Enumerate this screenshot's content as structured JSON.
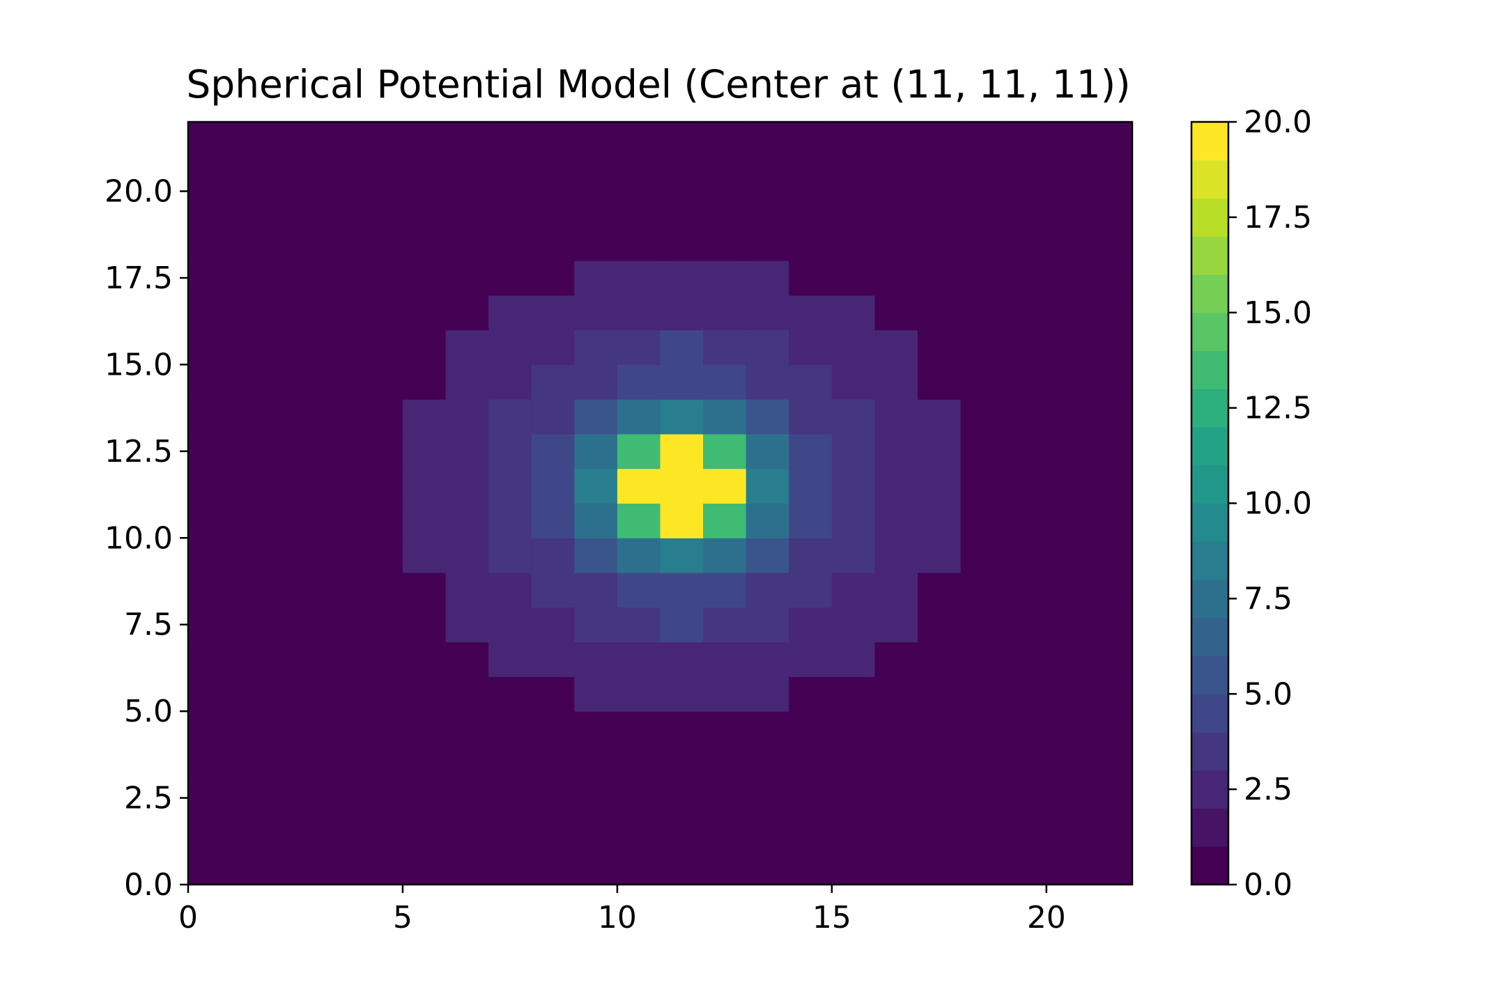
{
  "chart_data": {
    "type": "heatmap",
    "title": "Spherical Potential Model (Center at (11, 11, 11))",
    "xlabel": "",
    "ylabel": "",
    "xlim": [
      0,
      22
    ],
    "ylim": [
      0,
      22
    ],
    "x_ticks": [
      0,
      5,
      10,
      15,
      20
    ],
    "x_tick_labels": [
      "0",
      "5",
      "10",
      "15",
      "20"
    ],
    "y_ticks": [
      0,
      2.5,
      5,
      7.5,
      10,
      12.5,
      15,
      17.5,
      20
    ],
    "y_tick_labels": [
      "0.0",
      "2.5",
      "5.0",
      "7.5",
      "10.0",
      "12.5",
      "15.0",
      "17.5",
      "20.0"
    ],
    "grid": false,
    "colormap": "viridis",
    "colorbar": {
      "range": [
        0,
        20
      ],
      "levels": 20,
      "ticks": [
        0,
        2.5,
        5,
        7.5,
        10,
        12.5,
        15,
        17.5,
        20
      ],
      "tick_labels": [
        "0.0",
        "2.5",
        "5.0",
        "7.5",
        "10.0",
        "12.5",
        "15.0",
        "17.5",
        "20.0"
      ]
    },
    "value_range": [
      0,
      20
    ],
    "cell_columns": 22,
    "cell_rows": 22,
    "notes_on_values": "values indexed values[row][col], row 0 at y 0..1 (bottom), col 0 at x 0..1 (left); cell center value reads off colorbar",
    "values": [
      [
        0,
        0,
        0,
        0,
        0,
        0,
        0,
        0,
        0,
        0,
        0,
        0,
        0,
        0,
        0,
        0,
        0,
        0,
        0,
        0,
        0,
        0
      ],
      [
        0,
        0,
        0,
        0,
        0,
        0,
        0,
        0,
        0,
        0,
        0,
        0,
        0,
        0,
        0,
        0,
        0,
        0,
        0,
        0,
        0,
        0
      ],
      [
        0,
        0,
        0,
        0,
        0,
        0,
        0,
        0,
        0,
        0,
        0,
        0,
        0,
        0,
        0,
        0,
        0,
        0,
        0,
        0,
        0,
        0
      ],
      [
        0,
        0,
        0,
        0,
        0,
        0,
        0,
        0,
        0,
        0,
        0,
        0,
        0,
        0,
        0,
        0,
        0,
        0,
        0,
        0,
        0,
        0
      ],
      [
        0,
        0,
        0,
        0,
        0,
        0,
        0,
        0,
        0,
        0,
        0,
        0,
        0,
        0,
        0,
        0,
        0,
        0,
        0,
        0,
        0,
        0
      ],
      [
        0,
        0,
        0,
        0,
        0,
        0,
        0,
        0,
        0,
        2,
        2,
        2,
        2,
        2,
        0,
        0,
        0,
        0,
        0,
        0,
        0,
        0
      ],
      [
        0,
        0,
        0,
        0,
        0,
        0,
        0,
        2,
        2,
        2,
        2,
        2,
        2,
        2,
        2,
        2,
        0,
        0,
        0,
        0,
        0,
        0
      ],
      [
        0,
        0,
        0,
        0,
        0,
        0,
        2,
        2,
        2,
        3,
        3,
        4,
        3,
        3,
        2,
        2,
        2,
        0,
        0,
        0,
        0,
        0
      ],
      [
        0,
        0,
        0,
        0,
        0,
        0,
        2,
        2,
        3,
        3,
        4,
        4,
        4,
        3,
        3,
        2,
        2,
        0,
        0,
        0,
        0,
        0
      ],
      [
        0,
        0,
        0,
        0,
        0,
        2,
        2,
        3,
        3,
        5,
        7,
        8,
        7,
        5,
        3,
        3,
        2,
        2,
        0,
        0,
        0,
        0
      ],
      [
        0,
        0,
        0,
        0,
        0,
        2,
        2,
        3,
        4,
        7,
        13,
        20,
        13,
        7,
        4,
        3,
        2,
        2,
        0,
        0,
        0,
        0
      ],
      [
        0,
        0,
        0,
        0,
        0,
        2,
        2,
        3,
        4,
        8,
        20,
        20,
        20,
        8,
        4,
        3,
        2,
        2,
        0,
        0,
        0,
        0
      ],
      [
        0,
        0,
        0,
        0,
        0,
        2,
        2,
        3,
        4,
        7,
        13,
        20,
        13,
        7,
        4,
        3,
        2,
        2,
        0,
        0,
        0,
        0
      ],
      [
        0,
        0,
        0,
        0,
        0,
        2,
        2,
        3,
        3,
        5,
        7,
        8,
        7,
        5,
        3,
        3,
        2,
        2,
        0,
        0,
        0,
        0
      ],
      [
        0,
        0,
        0,
        0,
        0,
        0,
        2,
        2,
        3,
        3,
        4,
        4,
        4,
        3,
        3,
        2,
        2,
        0,
        0,
        0,
        0,
        0
      ],
      [
        0,
        0,
        0,
        0,
        0,
        0,
        2,
        2,
        2,
        3,
        3,
        4,
        3,
        3,
        2,
        2,
        2,
        0,
        0,
        0,
        0,
        0
      ],
      [
        0,
        0,
        0,
        0,
        0,
        0,
        0,
        2,
        2,
        2,
        2,
        2,
        2,
        2,
        2,
        2,
        0,
        0,
        0,
        0,
        0,
        0
      ],
      [
        0,
        0,
        0,
        0,
        0,
        0,
        0,
        0,
        0,
        2,
        2,
        2,
        2,
        2,
        0,
        0,
        0,
        0,
        0,
        0,
        0,
        0
      ],
      [
        0,
        0,
        0,
        0,
        0,
        0,
        0,
        0,
        0,
        0,
        0,
        0,
        0,
        0,
        0,
        0,
        0,
        0,
        0,
        0,
        0,
        0
      ],
      [
        0,
        0,
        0,
        0,
        0,
        0,
        0,
        0,
        0,
        0,
        0,
        0,
        0,
        0,
        0,
        0,
        0,
        0,
        0,
        0,
        0,
        0
      ],
      [
        0,
        0,
        0,
        0,
        0,
        0,
        0,
        0,
        0,
        0,
        0,
        0,
        0,
        0,
        0,
        0,
        0,
        0,
        0,
        0,
        0,
        0
      ],
      [
        0,
        0,
        0,
        0,
        0,
        0,
        0,
        0,
        0,
        0,
        0,
        0,
        0,
        0,
        0,
        0,
        0,
        0,
        0,
        0,
        0,
        0
      ]
    ]
  }
}
